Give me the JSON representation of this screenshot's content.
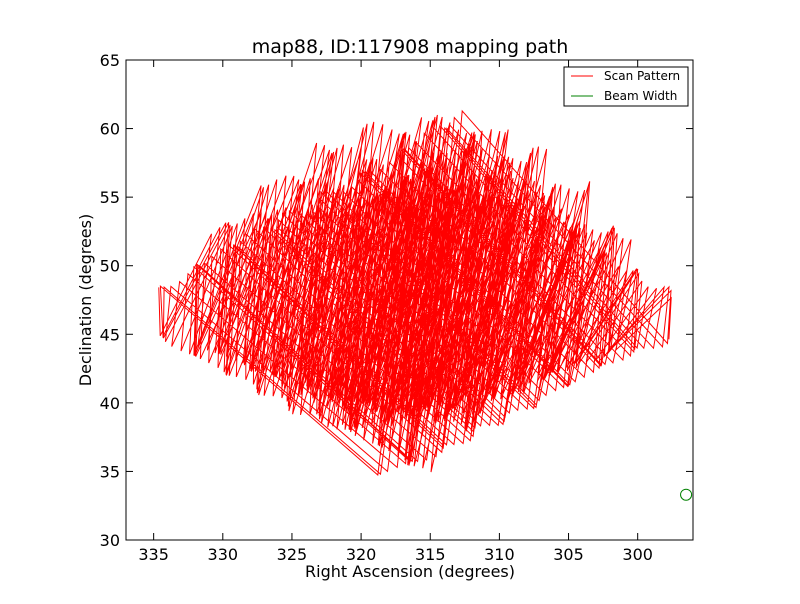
{
  "chart_data": {
    "type": "line",
    "title": "map88, ID:117908 mapping path",
    "xlabel": "Right Ascension (degrees)",
    "ylabel": "Declination (degrees)",
    "xlim": [
      337,
      296
    ],
    "ylim": [
      30,
      65
    ],
    "x_inverted": true,
    "xticks": [
      335,
      330,
      325,
      320,
      315,
      310,
      305,
      300
    ],
    "yticks": [
      30,
      35,
      40,
      45,
      50,
      55,
      60,
      65
    ],
    "grid": false,
    "legend_position": "top-right",
    "series": [
      {
        "name": "Scan Pattern",
        "color": "#ff0000",
        "style": "zigzag raster scan",
        "start_edge": [
          [
            336.5,
            45.5
          ],
          [
            332,
            49.5
          ],
          [
            328,
            52.5
          ],
          [
            324,
            55.2
          ],
          [
            320,
            57.4
          ],
          [
            317,
            59.5
          ],
          [
            314,
            61.0
          ]
        ],
        "end_edge": [
          [
            336.5,
            45.0
          ],
          [
            330,
            41.5
          ],
          [
            325,
            38.7
          ],
          [
            321,
            36.2
          ],
          [
            317,
            33.0
          ]
        ],
        "top_edge": [
          [
            314,
            61.0
          ],
          [
            311.5,
            60.5
          ],
          [
            309,
            58.7
          ],
          [
            305,
            55.0
          ],
          [
            302,
            51.5
          ],
          [
            300,
            48.8
          ],
          [
            297,
            46.2
          ],
          [
            296,
            45.0
          ]
        ],
        "bottom_edge": [
          [
            317,
            33.0
          ],
          [
            313,
            35.0
          ],
          [
            309,
            38.0
          ],
          [
            304,
            41.0
          ],
          [
            300,
            43.2
          ],
          [
            296,
            44.7
          ]
        ]
      },
      {
        "name": "Beam Width",
        "color": "#008000",
        "style": "circle",
        "center": [
          296.5,
          33.3
        ],
        "radius_deg": 0.4
      }
    ]
  }
}
